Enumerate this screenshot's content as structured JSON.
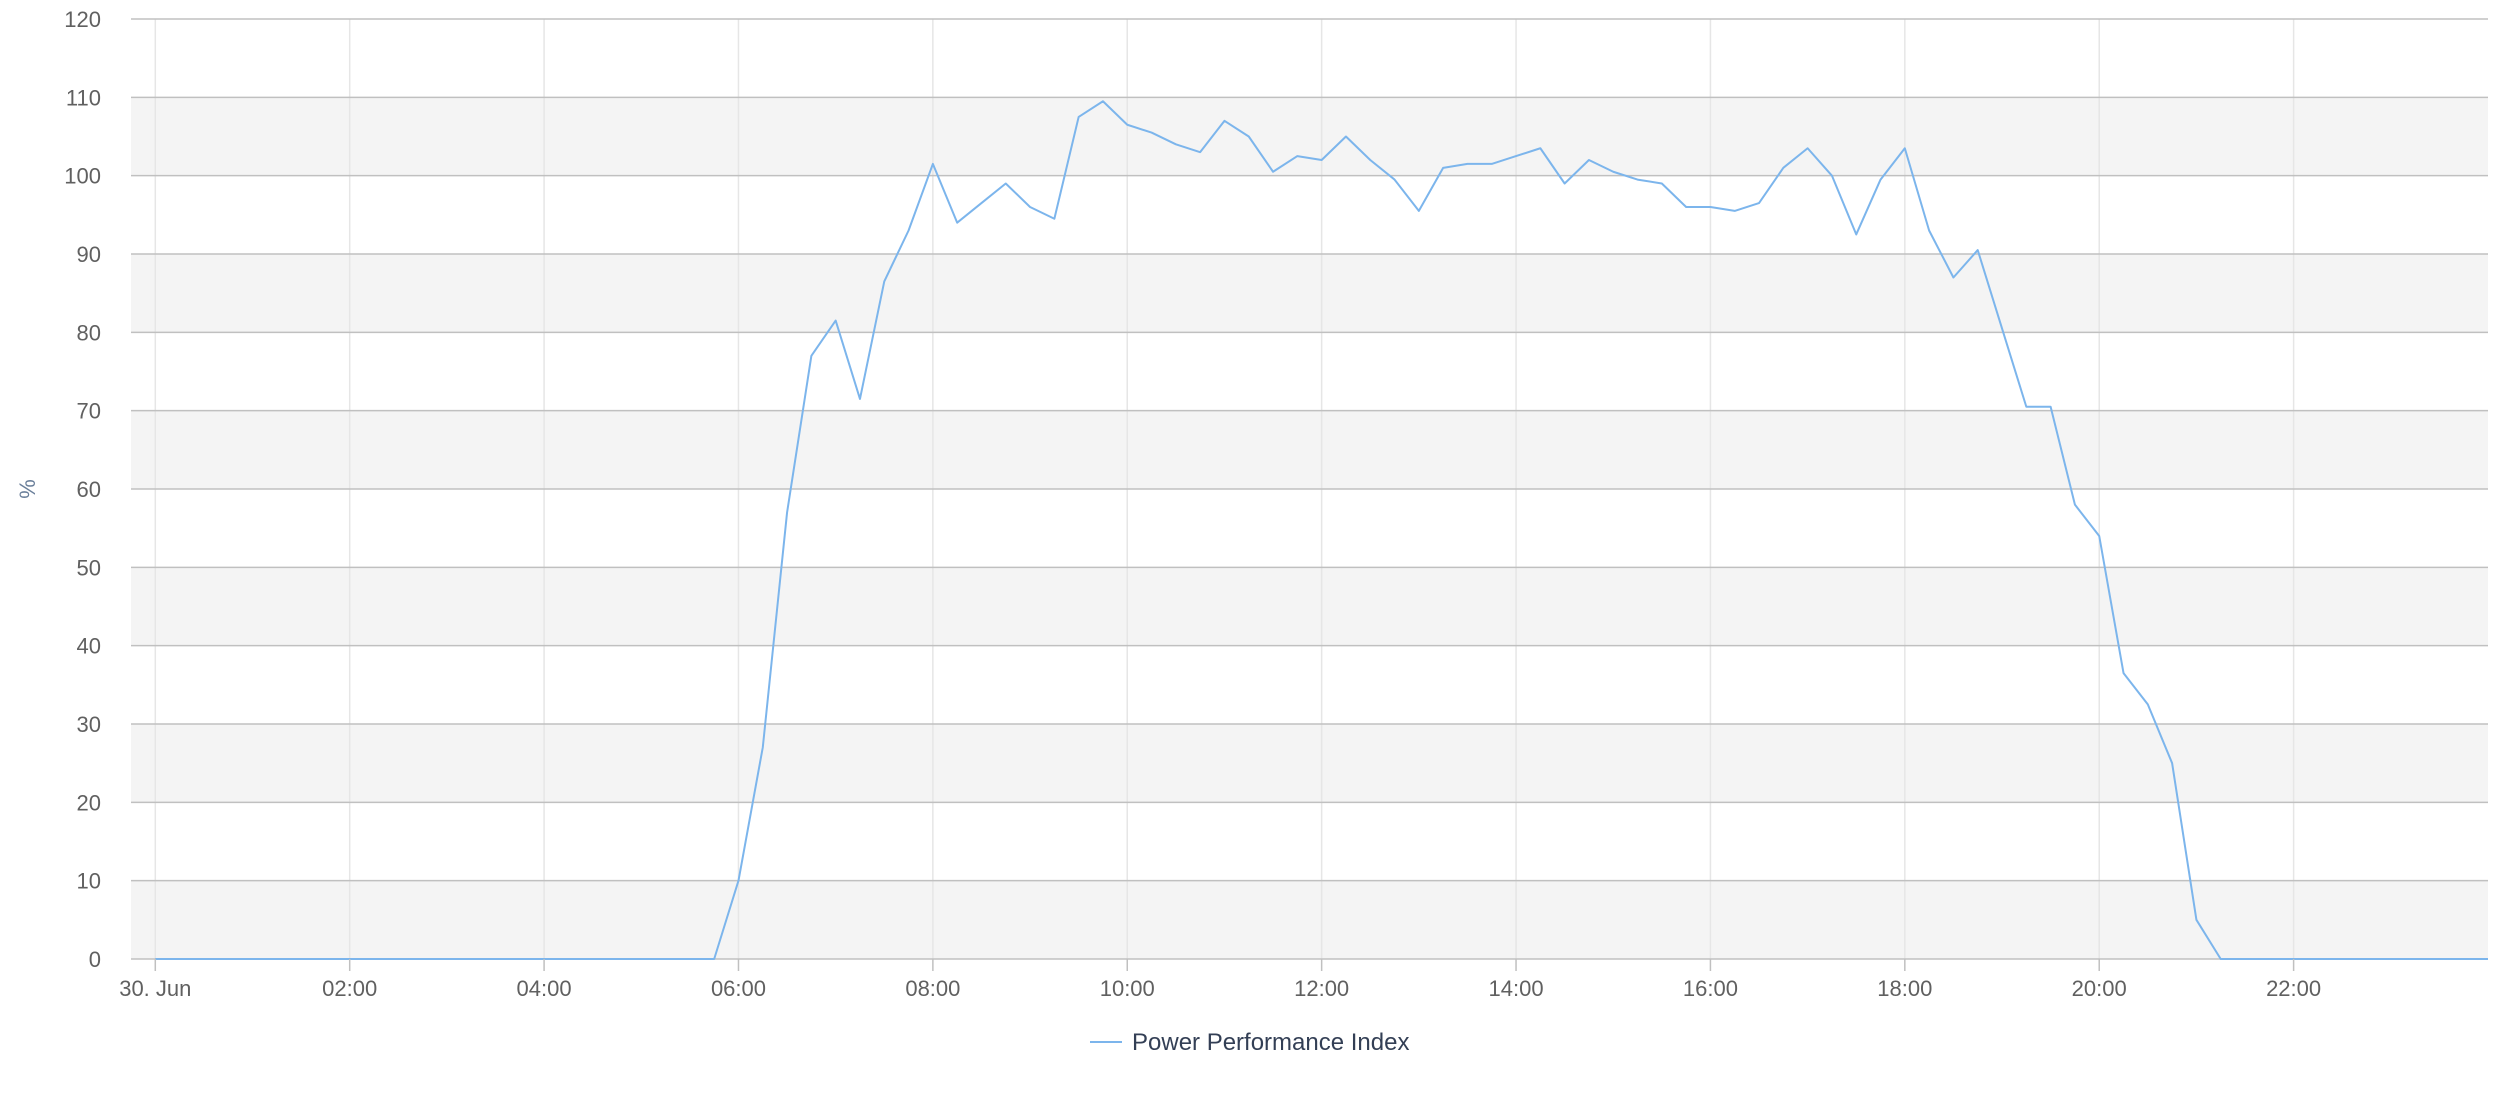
{
  "chart_data": {
    "type": "line",
    "title": "",
    "xlabel": "",
    "ylabel": "%",
    "ylim": [
      0,
      120
    ],
    "y_ticks": [
      0,
      10,
      20,
      30,
      40,
      50,
      60,
      70,
      80,
      90,
      100,
      110,
      120
    ],
    "x_tick_labels": [
      "30. Jun",
      "02:00",
      "04:00",
      "06:00",
      "08:00",
      "10:00",
      "12:00",
      "14:00",
      "16:00",
      "18:00",
      "20:00",
      "22:00"
    ],
    "x_unit": "hour of day (30 Jun)",
    "xlim": [
      -0.25,
      24
    ],
    "grid": true,
    "alternate_bands": true,
    "legend_position": "bottom-center",
    "colors": {
      "series": "#7cb5ec",
      "band": "#f4f4f4",
      "grid_horizontal": "#c0c0c0",
      "grid_vertical": "#e6e6e6",
      "tick_text": "#606060",
      "axis_title": "#6a7f9a",
      "legend_text": "#333f55"
    },
    "series": [
      {
        "name": "Power Performance Index",
        "x": [
          0.0,
          0.25,
          0.5,
          0.75,
          1.0,
          1.25,
          1.5,
          1.75,
          2.0,
          2.25,
          2.5,
          2.75,
          3.0,
          3.25,
          3.5,
          3.75,
          4.0,
          4.25,
          4.5,
          4.75,
          5.0,
          5.25,
          5.5,
          5.75,
          6.0,
          6.25,
          6.5,
          6.75,
          7.0,
          7.25,
          7.5,
          7.75,
          8.0,
          8.25,
          8.5,
          8.75,
          9.0,
          9.25,
          9.5,
          9.75,
          10.0,
          10.25,
          10.5,
          10.75,
          11.0,
          11.25,
          11.5,
          11.75,
          12.0,
          12.25,
          12.5,
          12.75,
          13.0,
          13.25,
          13.5,
          13.75,
          14.0,
          14.25,
          14.5,
          14.75,
          15.0,
          15.25,
          15.5,
          15.75,
          16.0,
          16.25,
          16.5,
          16.75,
          17.0,
          17.25,
          17.5,
          17.75,
          18.0,
          18.25,
          18.5,
          18.75,
          19.0,
          19.25,
          19.5,
          19.75,
          20.0,
          20.25,
          20.5,
          20.75,
          21.0,
          21.25,
          21.5,
          21.75,
          22.0,
          22.25,
          22.5,
          22.75,
          23.0,
          23.25,
          23.5,
          23.75,
          24.0
        ],
        "values": [
          0,
          0,
          0,
          0,
          0,
          0,
          0,
          0,
          0,
          0,
          0,
          0,
          0,
          0,
          0,
          0,
          0,
          0,
          0,
          0,
          0,
          0,
          0,
          0,
          10,
          27,
          57,
          77,
          81.5,
          71.5,
          86.5,
          93,
          101.5,
          94,
          96.5,
          99,
          96,
          94.5,
          107.5,
          109.5,
          106.5,
          105.5,
          104,
          103,
          107,
          105,
          100.5,
          102.5,
          102,
          105,
          102,
          99.5,
          95.5,
          101,
          101.5,
          101.5,
          102.5,
          103.5,
          99,
          102,
          100.5,
          99.5,
          99,
          96,
          96,
          95.5,
          96.5,
          101,
          103.5,
          100,
          92.5,
          99.5,
          103.5,
          93,
          87,
          90.5,
          80.5,
          70.5,
          70.5,
          58,
          54,
          36.5,
          32.5,
          25,
          5,
          0,
          0,
          0,
          0,
          0,
          0,
          0,
          0,
          0,
          0,
          0,
          0
        ]
      }
    ]
  }
}
